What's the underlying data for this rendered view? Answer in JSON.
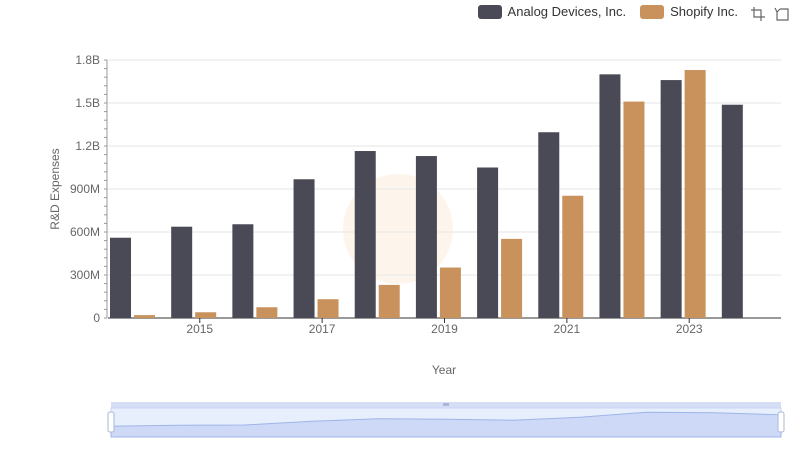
{
  "chart_data": {
    "type": "bar",
    "title": "",
    "xlabel": "Year",
    "ylabel": "R&D Expenses",
    "years": [
      2014,
      2015,
      2016,
      2017,
      2018,
      2019,
      2020,
      2021,
      2022,
      2023,
      2024
    ],
    "x_tick_labels": [
      "2015",
      "2017",
      "2019",
      "2021",
      "2023"
    ],
    "y_ticks": [
      {
        "value": 0,
        "label": "0"
      },
      {
        "value": 300000000,
        "label": "300M"
      },
      {
        "value": 600000000,
        "label": "600M"
      },
      {
        "value": 900000000,
        "label": "900M"
      },
      {
        "value": 1200000000,
        "label": "1.2B"
      },
      {
        "value": 1500000000,
        "label": "1.5B"
      },
      {
        "value": 1800000000,
        "label": "1.8B"
      }
    ],
    "ylim": [
      0,
      1800000000
    ],
    "grid": true,
    "legend_position": "top-right",
    "series": [
      {
        "name": "Analog Devices, Inc.",
        "color": "#4a4a56",
        "values": [
          560000000,
          637000000,
          654000000,
          968000000,
          1165000000,
          1130000000,
          1050000000,
          1296000000,
          1700000000,
          1660000000,
          1488000000
        ]
      },
      {
        "name": "Shopify Inc.",
        "color": "#c9915c",
        "values": [
          20000000,
          40000000,
          75000000,
          131000000,
          231000000,
          352000000,
          552000000,
          853000000,
          1510000000,
          1730000000,
          null
        ]
      }
    ]
  },
  "toolbox": {
    "zoom_icon": "zoom-select-icon",
    "restore_icon": "restore-icon"
  }
}
